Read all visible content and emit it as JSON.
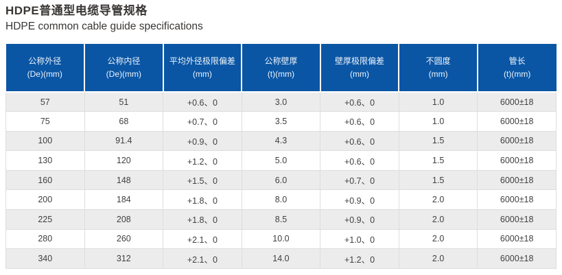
{
  "page": {
    "title_zh": "HDPE普通型电缆导管规格",
    "title_en": "HDPE common cable guide specifications"
  },
  "colors": {
    "header_bg": "#0a56a5",
    "header_text": "#edf3fa",
    "row_alt_bg": "#ececec",
    "row_bg": "#ffffff",
    "body_text": "#3f3f3f",
    "grid_border": "#dddddd",
    "title_text": "#393634"
  },
  "table": {
    "columns": [
      {
        "line1": "公称外径",
        "line2": "(De)(mm)"
      },
      {
        "line1": "公称内径",
        "line2": "(De)(mm)"
      },
      {
        "line1": "平均外径极限偏差",
        "line2": "(mm)"
      },
      {
        "line1": "公称壁厚",
        "line2": "(t)(mm)"
      },
      {
        "line1": "壁厚极限偏差",
        "line2": "(mm)"
      },
      {
        "line1": "不圆度",
        "line2": "(mm)"
      },
      {
        "line1": "管长",
        "line2": "(t)(mm)"
      }
    ],
    "rows": [
      [
        "57",
        "51",
        "+0.6、0",
        "3.0",
        "+0.6、0",
        "1.0",
        "6000±18"
      ],
      [
        "75",
        "68",
        "+0.7、0",
        "3.5",
        "+0.6、0",
        "1.0",
        "6000±18"
      ],
      [
        "100",
        "91.4",
        "+0.9、0",
        "4.3",
        "+0.6、0",
        "1.5",
        "6000±18"
      ],
      [
        "130",
        "120",
        "+1.2、0",
        "5.0",
        "+0.6、0",
        "1.5",
        "6000±18"
      ],
      [
        "160",
        "148",
        "+1.5、0",
        "6.0",
        "+0.7、0",
        "1.5",
        "6000±18"
      ],
      [
        "200",
        "184",
        "+1.8、0",
        "8.0",
        "+0.9、0",
        "2.0",
        "6000±18"
      ],
      [
        "225",
        "208",
        "+1.8、0",
        "8.5",
        "+0.9、0",
        "2.0",
        "6000±18"
      ],
      [
        "280",
        "260",
        "+2.1、0",
        "10.0",
        "+1.0、0",
        "2.0",
        "6000±18"
      ],
      [
        "340",
        "312",
        "+2.1、0",
        "14.0",
        "+1.2、0",
        "2.0",
        "6000±18"
      ]
    ]
  },
  "chart_data": {
    "type": "table",
    "title": "HDPE普通型电缆导管规格 / HDPE common cable guide specifications",
    "columns": [
      "公称外径 (De)(mm)",
      "公称内径 (De)(mm)",
      "平均外径极限偏差 (mm)",
      "公称壁厚 (t)(mm)",
      "壁厚极限偏差 (mm)",
      "不圆度 (mm)",
      "管长 (t)(mm)"
    ],
    "rows": [
      [
        "57",
        "51",
        "+0.6、0",
        "3.0",
        "+0.6、0",
        "1.0",
        "6000±18"
      ],
      [
        "75",
        "68",
        "+0.7、0",
        "3.5",
        "+0.6、0",
        "1.0",
        "6000±18"
      ],
      [
        "100",
        "91.4",
        "+0.9、0",
        "4.3",
        "+0.6、0",
        "1.5",
        "6000±18"
      ],
      [
        "130",
        "120",
        "+1.2、0",
        "5.0",
        "+0.6、0",
        "1.5",
        "6000±18"
      ],
      [
        "160",
        "148",
        "+1.5、0",
        "6.0",
        "+0.7、0",
        "1.5",
        "6000±18"
      ],
      [
        "200",
        "184",
        "+1.8、0",
        "8.0",
        "+0.9、0",
        "2.0",
        "6000±18"
      ],
      [
        "225",
        "208",
        "+1.8、0",
        "8.5",
        "+0.9、0",
        "2.0",
        "6000±18"
      ],
      [
        "280",
        "260",
        "+2.1、0",
        "10.0",
        "+1.0、0",
        "2.0",
        "6000±18"
      ],
      [
        "340",
        "312",
        "+2.1、0",
        "14.0",
        "+1.2、0",
        "2.0",
        "6000±18"
      ]
    ]
  }
}
